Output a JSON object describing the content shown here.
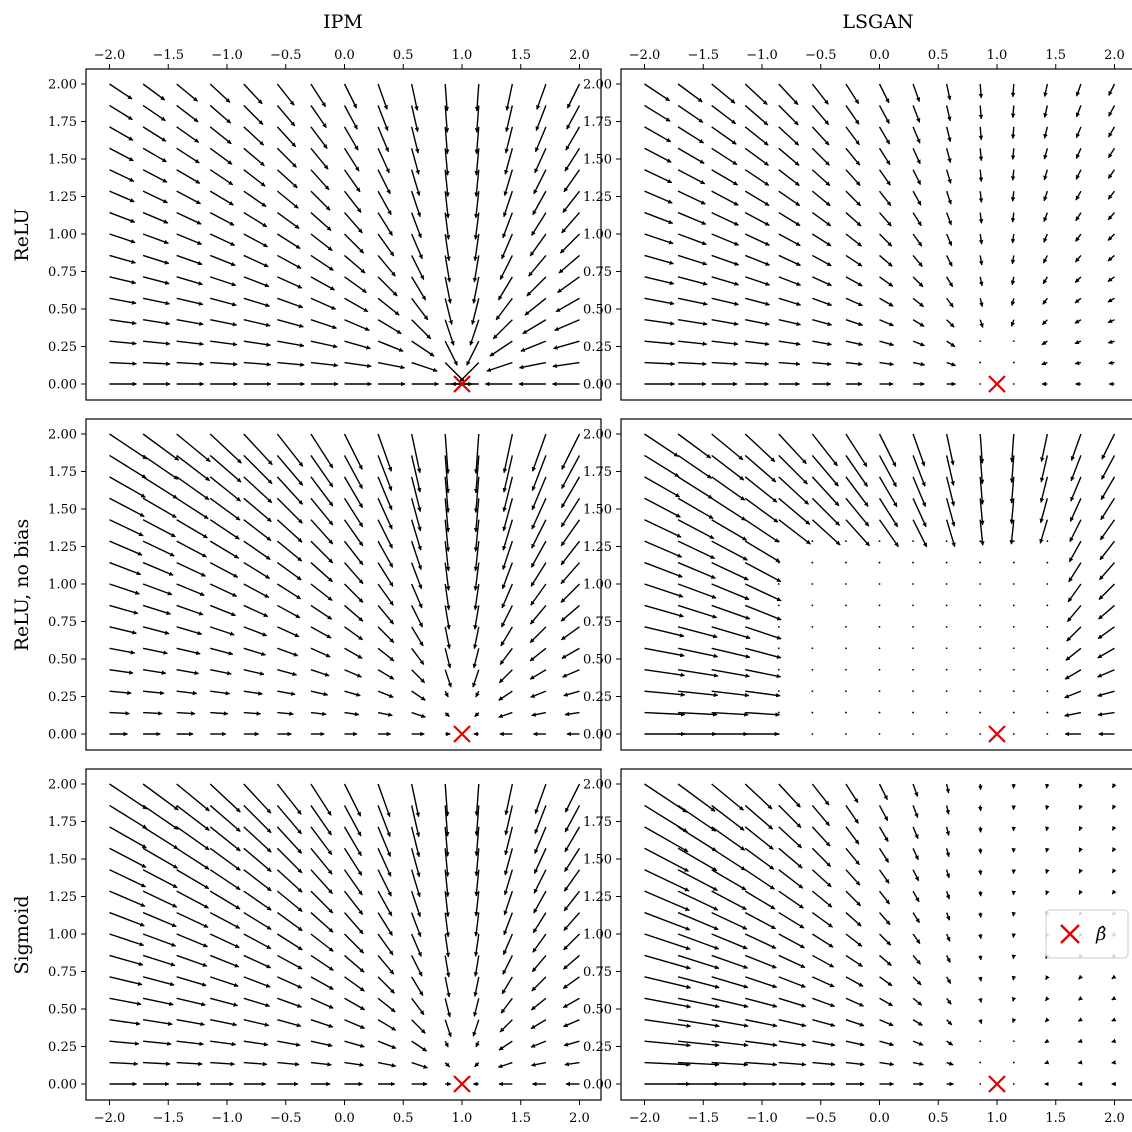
{
  "figure": {
    "column_titles": [
      "IPM",
      "LSGAN"
    ],
    "row_labels": [
      "ReLU",
      "ReLU, no bias",
      "Sigmoid"
    ],
    "legend": {
      "label": "β̂",
      "marker": "x",
      "color": "#e00000",
      "panel": "Sigmoid / LSGAN",
      "placement": "center-right"
    },
    "x_tick_labels": [
      "−2.0",
      "−1.5",
      "−1.0",
      "−0.5",
      "0.0",
      "0.5",
      "1.0",
      "1.5",
      "2.0"
    ],
    "y_tick_labels": [
      "0.00",
      "0.25",
      "0.50",
      "0.75",
      "1.00",
      "1.25",
      "1.50",
      "1.75",
      "2.00"
    ],
    "top_x_axis_ticks": true,
    "bottom_x_axis_ticks": true
  },
  "chart_data": [
    {
      "type": "quiver",
      "row": "ReLU",
      "col": "IPM",
      "grid": {
        "x_range": [
          -2.0,
          2.0
        ],
        "y_range": [
          0.0,
          2.0
        ],
        "nx": 15,
        "ny": 15
      },
      "target": [
        1.0,
        0.0
      ],
      "target_marker_color": "#e00000",
      "xlim": [
        -2.2,
        2.2
      ],
      "ylim": [
        -0.1,
        2.1
      ],
      "field": "IPM flow, near-uniform magnitude, converging on β̂",
      "grid_on": false
    },
    {
      "type": "quiver",
      "row": "ReLU",
      "col": "LSGAN",
      "grid": {
        "x_range": [
          -2.0,
          2.0
        ],
        "y_range": [
          0.0,
          2.0
        ],
        "nx": 15,
        "ny": 15
      },
      "target": [
        1.0,
        0.0
      ],
      "target_marker_color": "#e00000",
      "xlim": [
        -2.2,
        2.2
      ],
      "ylim": [
        -0.1,
        2.1
      ],
      "field": "LSGAN flow, magnitude decays near β̂",
      "grid_on": false
    },
    {
      "type": "quiver",
      "row": "ReLU, no bias",
      "col": "IPM",
      "grid": {
        "x_range": [
          -2.0,
          2.0
        ],
        "y_range": [
          0.0,
          2.0
        ],
        "nx": 15,
        "ny": 15
      },
      "target": [
        1.0,
        0.0
      ],
      "target_marker_color": "#e00000",
      "xlim": [
        -2.2,
        2.2
      ],
      "ylim": [
        -0.1,
        2.1
      ],
      "field": "IPM flow, vanishing region near origin",
      "grid_on": false
    },
    {
      "type": "quiver",
      "row": "ReLU, no bias",
      "col": "LSGAN",
      "grid": {
        "x_range": [
          -2.0,
          2.0
        ],
        "y_range": [
          0.0,
          2.0
        ],
        "nx": 15,
        "ny": 15
      },
      "target": [
        1.0,
        0.0
      ],
      "target_marker_color": "#e00000",
      "xlim": [
        -2.2,
        2.2
      ],
      "ylim": [
        -0.1,
        2.1
      ],
      "field": "LSGAN flow, large vectors away from β̂, dead zone around it",
      "grid_on": false
    },
    {
      "type": "quiver",
      "row": "Sigmoid",
      "col": "IPM",
      "grid": {
        "x_range": [
          -2.0,
          2.0
        ],
        "y_range": [
          0.0,
          2.0
        ],
        "nx": 15,
        "ny": 15
      },
      "target": [
        1.0,
        0.0
      ],
      "target_marker_color": "#e00000",
      "xlim": [
        -2.2,
        2.2
      ],
      "ylim": [
        -0.1,
        2.1
      ],
      "field": "IPM flow, smooth convergence toward β̂",
      "grid_on": false
    },
    {
      "type": "quiver",
      "row": "Sigmoid",
      "col": "LSGAN",
      "grid": {
        "x_range": [
          -2.0,
          2.0
        ],
        "y_range": [
          0.0,
          2.0
        ],
        "nx": 15,
        "ny": 15
      },
      "target": [
        1.0,
        0.0
      ],
      "target_marker_color": "#e00000",
      "xlim": [
        -2.2,
        2.2
      ],
      "ylim": [
        -0.1,
        2.1
      ],
      "field": "LSGAN flow, long vectors on left, tiny vectors on right",
      "grid_on": false,
      "legend": "center-right"
    }
  ]
}
